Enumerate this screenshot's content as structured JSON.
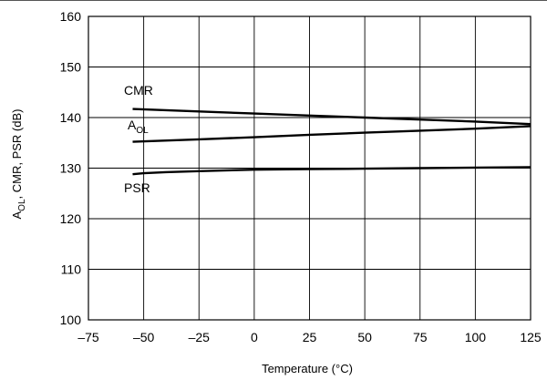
{
  "chart_data": {
    "type": "line",
    "xlabel": "Temperature (°C)",
    "ylabel": {
      "prefix": "A",
      "sub": "OL",
      "rest": ", CMR, PSR (dB)"
    },
    "xlim": [
      -75,
      125
    ],
    "ylim": [
      100,
      160
    ],
    "xticks": [
      -75,
      -50,
      -25,
      0,
      25,
      50,
      75,
      100,
      125
    ],
    "yticks": [
      100,
      110,
      120,
      130,
      140,
      150,
      160
    ],
    "xtick_labels": [
      "–75",
      "–50",
      "–25",
      "0",
      "25",
      "50",
      "75",
      "100",
      "125"
    ],
    "ytick_labels": [
      "100",
      "110",
      "120",
      "130",
      "140",
      "150",
      "160"
    ],
    "grid": true,
    "series": [
      {
        "name": "CMR",
        "label": {
          "main": "CMR",
          "sub": ""
        },
        "x": [
          -55,
          -25,
          0,
          25,
          50,
          75,
          100,
          125
        ],
        "y": [
          141.7,
          141.2,
          140.8,
          140.4,
          140.0,
          139.6,
          139.2,
          138.7
        ]
      },
      {
        "name": "AOL",
        "label": {
          "main": "A",
          "sub": "OL"
        },
        "x": [
          -55,
          -25,
          0,
          25,
          50,
          75,
          100,
          125
        ],
        "y": [
          135.2,
          135.7,
          136.1,
          136.6,
          137.0,
          137.4,
          137.8,
          138.3
        ]
      },
      {
        "name": "PSR",
        "label": {
          "main": "PSR",
          "sub": ""
        },
        "x": [
          -55,
          -50,
          -40,
          -25,
          0,
          25,
          50,
          75,
          100,
          125
        ],
        "y": [
          128.8,
          129.0,
          129.2,
          129.4,
          129.7,
          129.8,
          129.9,
          130.0,
          130.1,
          130.2
        ]
      }
    ]
  }
}
